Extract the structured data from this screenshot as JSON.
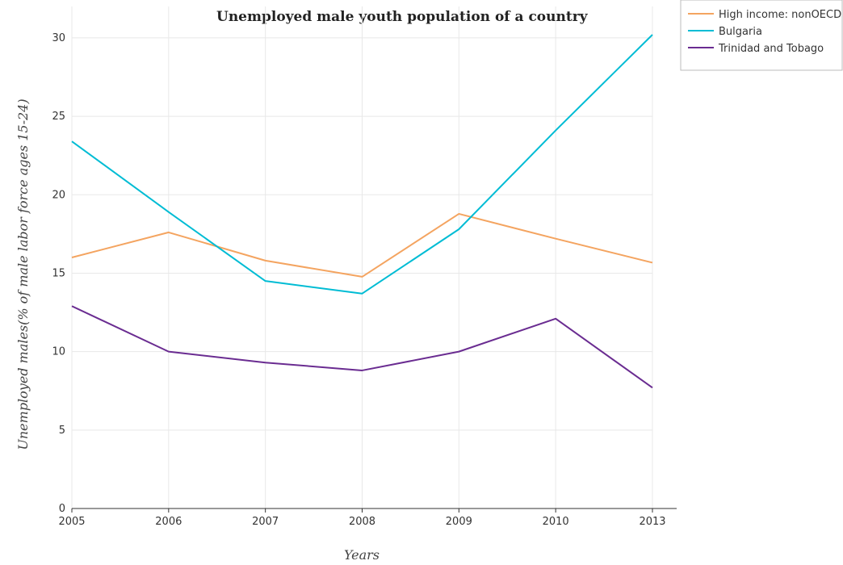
{
  "chart_data": {
    "type": "line",
    "title": "Unemployed male youth population of a country",
    "xlabel": "Years",
    "ylabel": "Unemployed males(% of male labor force ages 15-24)",
    "categories": [
      "2005",
      "2006",
      "2007",
      "2008",
      "2009",
      "2010",
      "2013"
    ],
    "ylim": [
      0,
      32
    ],
    "yticks": [
      0,
      5,
      10,
      15,
      20,
      25,
      30
    ],
    "grid": true,
    "legend_position": "top-right",
    "series": [
      {
        "name": "High income: nonOECD",
        "color": "#f4a460",
        "values": [
          16.0,
          17.6,
          15.8,
          14.77,
          18.78,
          17.2,
          15.67
        ]
      },
      {
        "name": "Bulgaria",
        "color": "#00bcd4",
        "values": [
          23.4,
          18.9,
          14.5,
          13.7,
          17.8,
          24.1,
          30.2
        ]
      },
      {
        "name": "Trinidad and Tobago",
        "color": "#6a2c91",
        "values": [
          12.9,
          10.0,
          9.3,
          8.8,
          10.0,
          12.1,
          7.7
        ]
      }
    ]
  }
}
